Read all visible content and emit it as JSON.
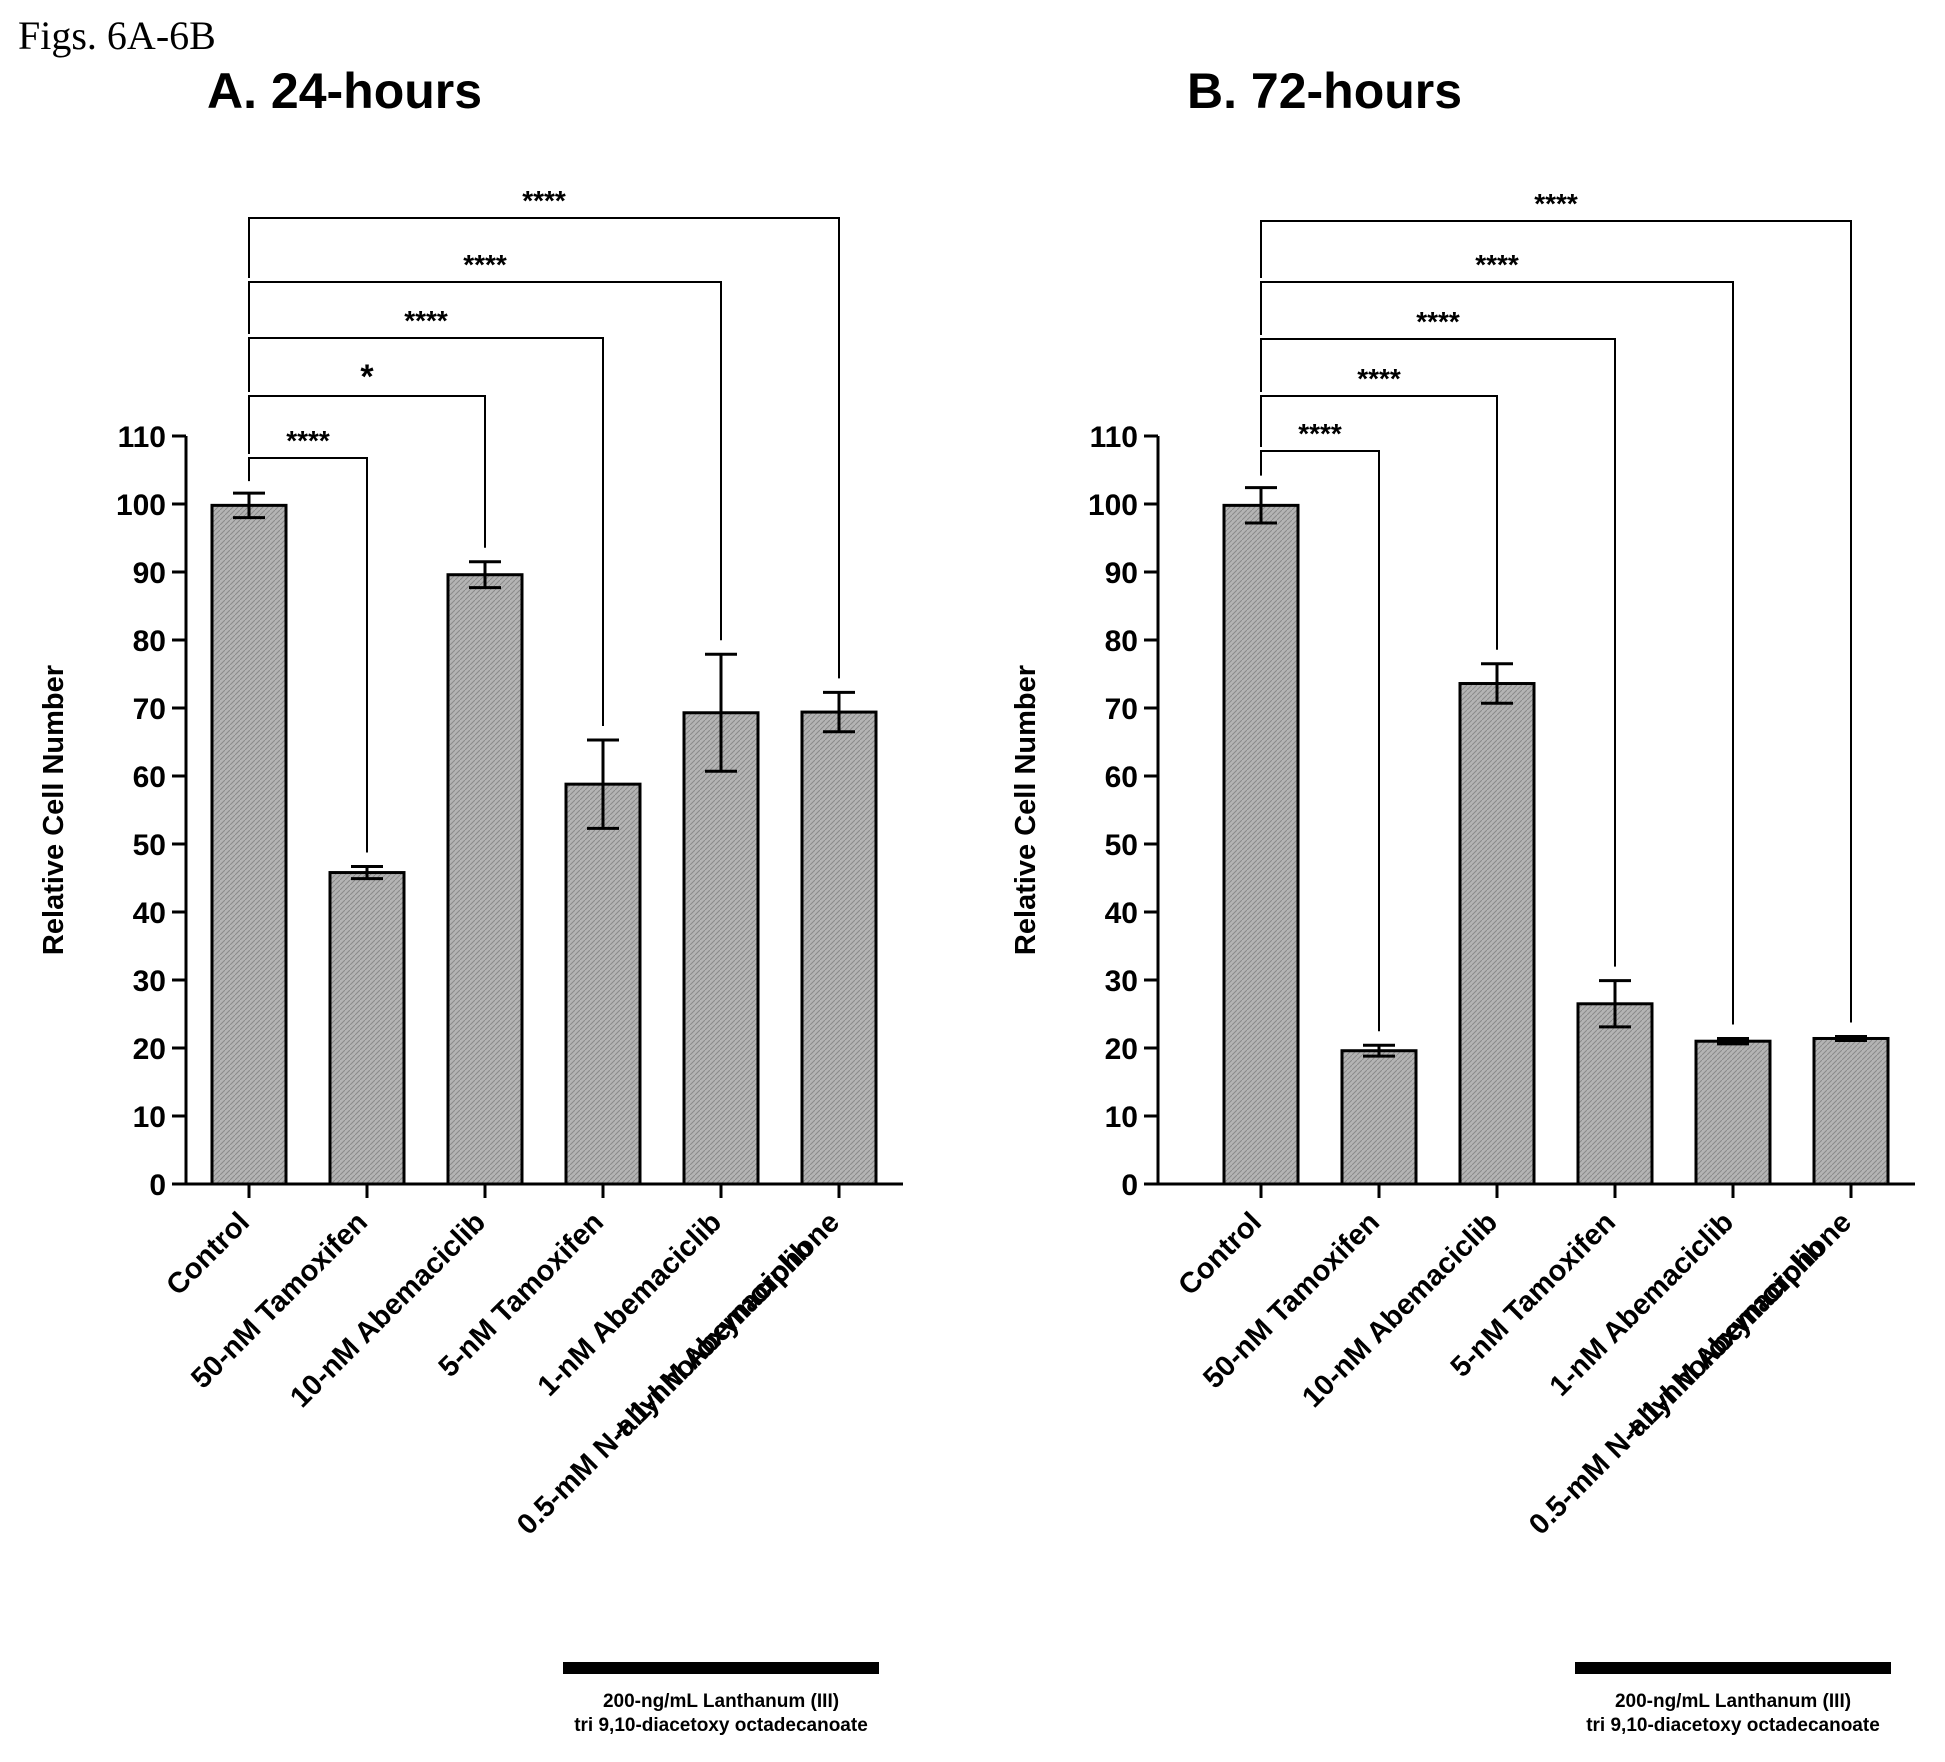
{
  "figure_label": "Figs. 6A-6B",
  "colors": {
    "bar_fill": "#b4b4b4",
    "bar_stroke": "#000000",
    "axis": "#000000"
  },
  "chart_data": [
    {
      "type": "bar",
      "title": "A. 24-hours",
      "ylabel": "Relative Cell Number",
      "xlabel": "",
      "ylim": [
        0,
        110
      ],
      "yticks": [
        0,
        10,
        20,
        30,
        40,
        50,
        60,
        70,
        80,
        90,
        100,
        110
      ],
      "grid": false,
      "categories": [
        "Control",
        "50-nM Tamoxifen",
        "10-nM Abemaciclib",
        "5-nM Tamoxifen",
        "1-nM Abemaciclib",
        "0.5-mM N-allyl noroxymorphone|+ 1-nM Abemaciclib"
      ],
      "values": [
        99.8,
        45.8,
        89.6,
        58.8,
        69.3,
        69.4
      ],
      "errors": [
        1.8,
        0.9,
        1.9,
        6.5,
        8.6,
        2.9
      ],
      "significance": [
        {
          "from": 0,
          "to": 1,
          "label": "****"
        },
        {
          "from": 0,
          "to": 2,
          "label": "*"
        },
        {
          "from": 0,
          "to": 3,
          "label": "****"
        },
        {
          "from": 0,
          "to": 4,
          "label": "****"
        },
        {
          "from": 0,
          "to": 5,
          "label": "****"
        }
      ],
      "treatment_bar": {
        "from": 3,
        "to": 5,
        "label_lines": [
          "200-ng/mL Lanthanum (III)",
          "tri 9,10-diacetoxy octadecanoate"
        ]
      }
    },
    {
      "type": "bar",
      "title": "B. 72-hours",
      "ylabel": "Relative Cell Number",
      "xlabel": "",
      "ylim": [
        0,
        110
      ],
      "yticks": [
        0,
        10,
        20,
        30,
        40,
        50,
        60,
        70,
        80,
        90,
        100,
        110
      ],
      "grid": false,
      "categories": [
        "Control",
        "50-nM Tamoxifen",
        "10-nM Abemaciclib",
        "5-nM Tamoxifen",
        "1-nM Abemaciclib",
        "0.5-mM N-allyl noroxymorphone|+ 1-nM Abemaciclib"
      ],
      "values": [
        99.8,
        19.6,
        73.6,
        26.5,
        21.0,
        21.4
      ],
      "errors": [
        2.6,
        0.8,
        2.9,
        3.4,
        0.4,
        0.3
      ],
      "significance": [
        {
          "from": 0,
          "to": 1,
          "label": "****"
        },
        {
          "from": 0,
          "to": 2,
          "label": "****"
        },
        {
          "from": 0,
          "to": 3,
          "label": "****"
        },
        {
          "from": 0,
          "to": 4,
          "label": "****"
        },
        {
          "from": 0,
          "to": 5,
          "label": "****"
        }
      ],
      "treatment_bar": {
        "from": 3,
        "to": 5,
        "label_lines": [
          "200-ng/mL Lanthanum (III)",
          "tri 9,10-diacetoxy octadecanoate"
        ]
      }
    }
  ]
}
